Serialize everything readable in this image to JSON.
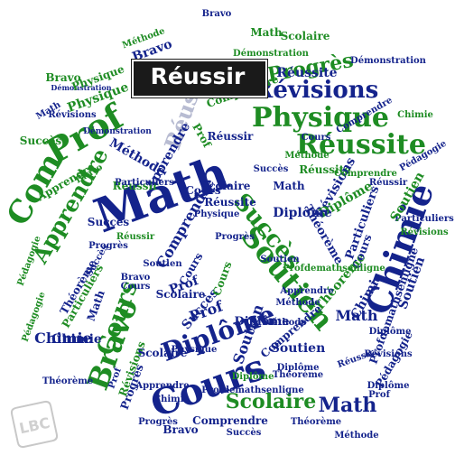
{
  "colors": {
    "navy": "#14238c",
    "green": "#1e8c23",
    "grey": "#b8bcd2",
    "highlight_bg": "#1a1a1a",
    "highlight_text": "#ffffff"
  },
  "highlight": {
    "label": "Réussir"
  },
  "watermark": {
    "text": "LBC",
    "icon": "leboncoin-logo"
  },
  "words": [
    {
      "text": "Math",
      "c": "navy"
    },
    {
      "text": "Prof",
      "c": "green"
    },
    {
      "text": "Cours",
      "c": "navy"
    },
    {
      "text": "Physique",
      "c": "green"
    },
    {
      "text": "Réussite",
      "c": "green"
    },
    {
      "text": "Chimie",
      "c": "navy"
    },
    {
      "text": "Révisions",
      "c": "navy"
    },
    {
      "text": "Diplôme",
      "c": "navy"
    },
    {
      "text": "Bravo",
      "c": "green"
    },
    {
      "text": "Soutien",
      "c": "green"
    },
    {
      "text": "Succès",
      "c": "green"
    },
    {
      "text": "Apprendre",
      "c": "green"
    },
    {
      "text": "Com",
      "c": "green"
    },
    {
      "text": "Progrès",
      "c": "green"
    },
    {
      "text": "Cours",
      "c": "green"
    },
    {
      "text": "Scolaire",
      "c": "green"
    },
    {
      "text": "Réussir",
      "c": "grey"
    },
    {
      "text": "Math",
      "c": "navy"
    },
    {
      "text": "Comprendre",
      "c": "navy"
    },
    {
      "text": "Méthode",
      "c": "navy"
    },
    {
      "text": "Chimie",
      "c": "navy"
    },
    {
      "text": "Bravo",
      "c": "navy"
    },
    {
      "text": "Soutien",
      "c": "navy"
    },
    {
      "text": "Diplôme",
      "c": "navy"
    },
    {
      "text": "Profdemathsenligne",
      "c": "navy"
    },
    {
      "text": "Physique",
      "c": "green"
    },
    {
      "text": "Pédagogie",
      "c": "green"
    },
    {
      "text": "Démonstration",
      "c": "navy"
    },
    {
      "text": "Théorème",
      "c": "navy"
    },
    {
      "text": "Particuliers",
      "c": "navy"
    },
    {
      "text": "Réussite",
      "c": "green"
    },
    {
      "text": "Révisions",
      "c": "navy"
    },
    {
      "text": "Prof",
      "c": "navy"
    },
    {
      "text": "Diplôme",
      "c": "green"
    },
    {
      "text": "Cours",
      "c": "navy"
    },
    {
      "text": "Réussir",
      "c": "navy"
    },
    {
      "text": "Succès",
      "c": "navy"
    },
    {
      "text": "Apprendre",
      "c": "navy"
    },
    {
      "text": "Scolaire",
      "c": "navy"
    },
    {
      "text": "Méthode",
      "c": "green"
    },
    {
      "text": "Comprendre",
      "c": "navy"
    },
    {
      "text": "Progrès",
      "c": "navy"
    },
    {
      "text": "Théorème",
      "c": "green"
    },
    {
      "text": "Physique",
      "c": "navy"
    },
    {
      "text": "Math",
      "c": "navy"
    },
    {
      "text": "Bravo",
      "c": "navy"
    },
    {
      "text": "Soutien",
      "c": "navy"
    },
    {
      "text": "Diplôme",
      "c": "navy"
    },
    {
      "text": "Chimie",
      "c": "navy"
    },
    {
      "text": "Succès",
      "c": "navy"
    },
    {
      "text": "Cours",
      "c": "navy"
    },
    {
      "text": "Pédagogie",
      "c": "navy"
    },
    {
      "text": "Réussir",
      "c": "green"
    },
    {
      "text": "Révisions",
      "c": "green"
    },
    {
      "text": "Particuliers",
      "c": "green"
    },
    {
      "text": "Démonstration",
      "c": "navy"
    },
    {
      "text": "Prof",
      "c": "navy"
    },
    {
      "text": "Comprendre",
      "c": "green"
    },
    {
      "text": "Méthode",
      "c": "navy"
    },
    {
      "text": "Progrès",
      "c": "green"
    },
    {
      "text": "Profdemathsenligne",
      "c": "navy"
    },
    {
      "text": "Scolaire",
      "c": "green"
    },
    {
      "text": "Théorème",
      "c": "navy"
    },
    {
      "text": "Apprendre",
      "c": "green"
    },
    {
      "text": "Réussite",
      "c": "navy"
    },
    {
      "text": "Math",
      "c": "navy"
    },
    {
      "text": "Cours",
      "c": "navy"
    },
    {
      "text": "Bravo",
      "c": "green"
    },
    {
      "text": "Succès",
      "c": "green"
    },
    {
      "text": "Diplôme",
      "c": "navy"
    },
    {
      "text": "Physique",
      "c": "navy"
    },
    {
      "text": "Soutien",
      "c": "navy"
    },
    {
      "text": "Chimie",
      "c": "navy"
    },
    {
      "text": "Révisions",
      "c": "navy"
    },
    {
      "text": "Prof",
      "c": "green"
    },
    {
      "text": "Réussir",
      "c": "navy"
    },
    {
      "text": "Comprendre",
      "c": "navy"
    },
    {
      "text": "Pédagogie",
      "c": "green"
    },
    {
      "text": "Progrès",
      "c": "navy"
    },
    {
      "text": "Méthode",
      "c": "navy"
    },
    {
      "text": "Particuliers",
      "c": "navy"
    },
    {
      "text": "Théorème",
      "c": "navy"
    },
    {
      "text": "Démonstration",
      "c": "navy"
    },
    {
      "text": "Scolaire",
      "c": "navy"
    },
    {
      "text": "Apprendre",
      "c": "navy"
    },
    {
      "text": "Math",
      "c": "green"
    },
    {
      "text": "Cours",
      "c": "green"
    },
    {
      "text": "Diplôme",
      "c": "navy"
    },
    {
      "text": "Bravo",
      "c": "navy"
    },
    {
      "text": "Succès",
      "c": "navy"
    },
    {
      "text": "Réussite",
      "c": "navy"
    },
    {
      "text": "Soutien",
      "c": "green"
    },
    {
      "text": "Chimie",
      "c": "navy"
    },
    {
      "text": "Prof",
      "c": "navy"
    },
    {
      "text": "Révisions",
      "c": "green"
    },
    {
      "text": "Physique",
      "c": "green"
    },
    {
      "text": "Profdemathsenligne",
      "c": "green"
    },
    {
      "text": "Comprendre",
      "c": "navy"
    },
    {
      "text": "Réussir",
      "c": "navy"
    },
    {
      "text": "Progrès",
      "c": "navy"
    },
    {
      "text": "Méthode",
      "c": "green"
    },
    {
      "text": "Pédagogie",
      "c": "navy"
    },
    {
      "text": "Théorème",
      "c": "navy"
    },
    {
      "text": "Scolaire",
      "c": "navy"
    },
    {
      "text": "Math",
      "c": "navy"
    },
    {
      "text": "Cours",
      "c": "navy"
    },
    {
      "text": "Bravo",
      "c": "navy"
    },
    {
      "text": "Diplôme",
      "c": "green"
    },
    {
      "text": "Succès",
      "c": "navy"
    },
    {
      "text": "Soutien",
      "c": "navy"
    },
    {
      "text": "Chimie",
      "c": "green"
    },
    {
      "text": "Prof",
      "c": "navy"
    },
    {
      "text": "Révisions",
      "c": "navy"
    },
    {
      "text": "Physique",
      "c": "navy"
    },
    {
      "text": "Réussir",
      "c": "green"
    },
    {
      "text": "Comprendre",
      "c": "green"
    },
    {
      "text": "Particuliers",
      "c": "navy"
    },
    {
      "text": "Progrès",
      "c": "navy"
    },
    {
      "text": "Méthode",
      "c": "navy"
    },
    {
      "text": "Démonstration",
      "c": "green"
    },
    {
      "text": "Théorème",
      "c": "navy"
    },
    {
      "text": "Apprendre",
      "c": "navy"
    },
    {
      "text": "Math",
      "c": "navy"
    },
    {
      "text": "Cours",
      "c": "navy"
    },
    {
      "text": "Bravo",
      "c": "green"
    },
    {
      "text": "Diplôme",
      "c": "navy"
    },
    {
      "text": "Succès",
      "c": "navy"
    },
    {
      "text": "Soutien",
      "c": "navy"
    }
  ]
}
